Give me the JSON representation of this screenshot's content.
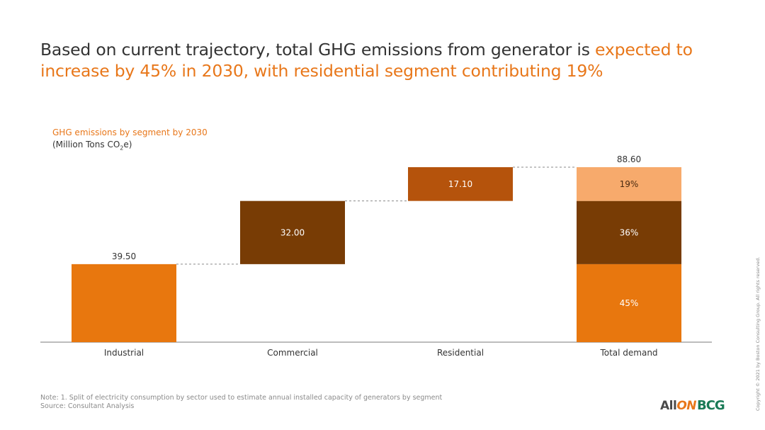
{
  "headline": {
    "part1": "Based on current trajectory, total GHG emissions from generator is ",
    "part2": "expected to increase by 45% in 2030, with residential segment contributing 19%"
  },
  "chart_subtitle": {
    "line1": "GHG emissions by segment by 2030",
    "line2_prefix": "(Million Tons CO",
    "line2_sub": "2",
    "line2_suffix": "e)"
  },
  "chart_data": {
    "type": "bar",
    "subtype": "waterfall",
    "title": "GHG emissions by segment by 2030",
    "ylabel": "(Million Tons CO2e)",
    "categories": [
      "Industrial",
      "Commercial",
      "Residential",
      "Total demand"
    ],
    "steps": [
      {
        "category": "Industrial",
        "value": 39.5,
        "label": "39.50",
        "label_position": "above",
        "color": "#E8770E"
      },
      {
        "category": "Commercial",
        "value": 32.0,
        "label": "32.00",
        "label_position": "inside",
        "color": "#783C05"
      },
      {
        "category": "Residential",
        "value": 17.1,
        "label": "17.10",
        "label_position": "inside",
        "color": "#B5530C"
      }
    ],
    "total": {
      "category": "Total demand",
      "value": 88.6,
      "label": "88.60",
      "segments": [
        {
          "name": "Industrial",
          "share_label": "45%",
          "value": 39.5,
          "color": "#E8770E"
        },
        {
          "name": "Commercial",
          "share_label": "36%",
          "value": 32.0,
          "color": "#783C05"
        },
        {
          "name": "Residential",
          "share_label": "19%",
          "value": 17.1,
          "color": "#F7AA6C"
        }
      ]
    },
    "ylim": [
      0,
      88.6
    ],
    "connectors": "dashed",
    "grid": false,
    "legend": "none"
  },
  "footnote": {
    "note": "Note: 1. Split of electricity consumption by sector used to estimate annual installed capacity of generators by segment",
    "source": "Source: Consultant Analysis"
  },
  "copyright": "Copyright © 2021 by Boston Consulting Group. All rights reserved.",
  "logos": {
    "allon_prefix": "All",
    "allon_suffix": "ON",
    "bcg": "BCG"
  },
  "colors": {
    "accent": "#E8771A",
    "text": "#333333",
    "bcg_green": "#197a56"
  }
}
